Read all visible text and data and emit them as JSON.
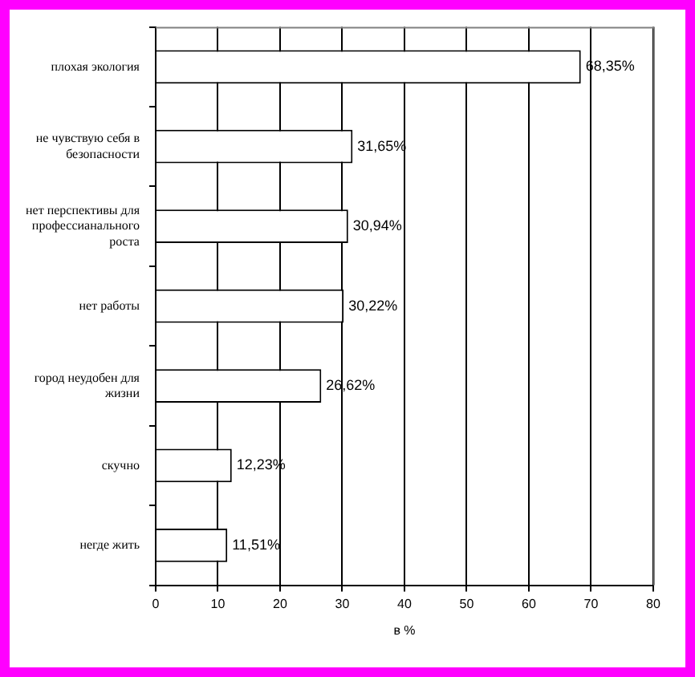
{
  "chart_data": {
    "type": "bar",
    "orientation": "horizontal",
    "xlabel": "в %",
    "categories": [
      "плохая экология",
      "не чувствую себя в безопасности",
      "нет перспективы для профессианального роста",
      "нет работы",
      "город неудобен для жизни",
      "скучно",
      "негде жить"
    ],
    "values": [
      68.35,
      31.65,
      30.94,
      30.22,
      26.62,
      12.23,
      11.51
    ],
    "value_labels": [
      "68,35%",
      "31,65%",
      "30,94%",
      "30,22%",
      "26,62%",
      "12,23%",
      "11,51%"
    ],
    "color": "#ffffff",
    "xlim": [
      0,
      80
    ],
    "xticks": [
      0,
      10,
      20,
      30,
      40,
      50,
      60,
      70,
      80
    ],
    "grid": "x",
    "legend": false
  }
}
